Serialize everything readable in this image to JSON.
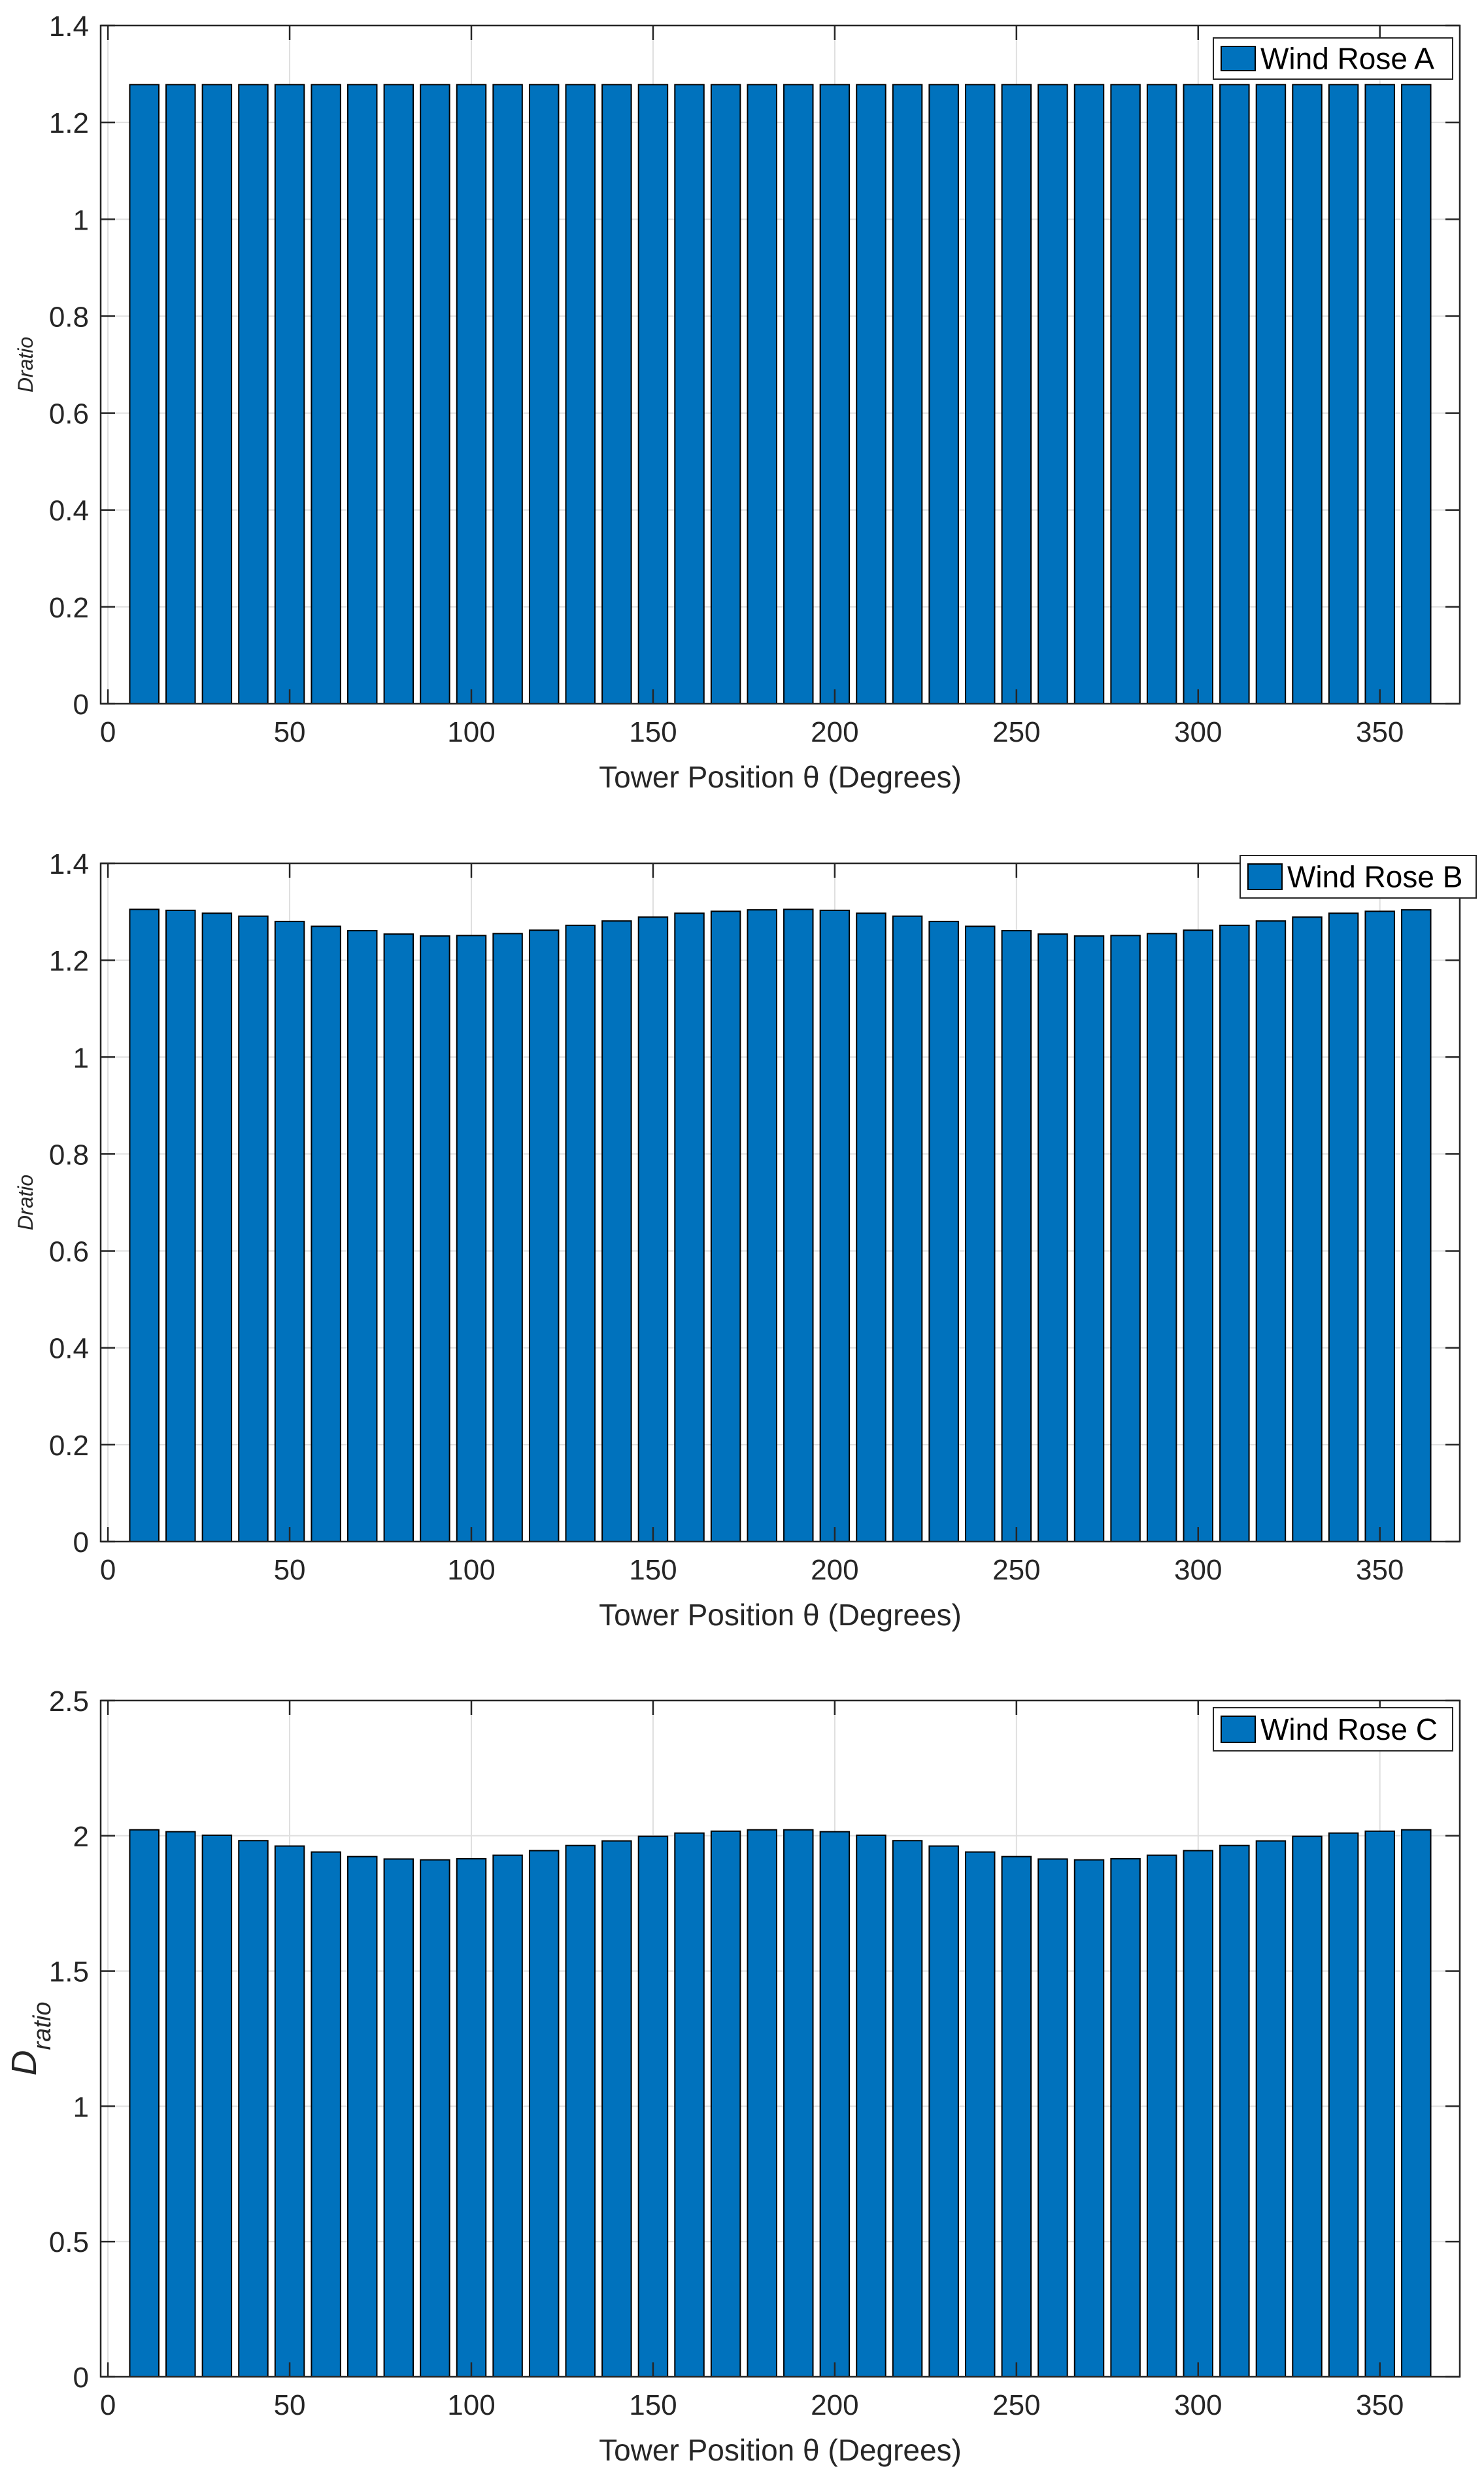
{
  "colors": {
    "bar": "#0072BD",
    "edge": "#000000",
    "grid": "#DFDFDF",
    "axis": "#262626"
  },
  "chart_data": [
    {
      "type": "bar",
      "title": "",
      "legend": "Wind Rose A",
      "legend_position": "top-right",
      "xlabel": "Tower Position θ (Degrees)",
      "ylabel": "Dratio",
      "ylabel_style": "inline",
      "xlim": [
        -2,
        372
      ],
      "ylim": [
        0,
        1.4
      ],
      "xticks": [
        0,
        50,
        100,
        150,
        200,
        250,
        300,
        350
      ],
      "yticks": [
        0,
        0.2,
        0.4,
        0.6,
        0.8,
        1,
        1.2,
        1.4
      ],
      "ytick_labels": [
        "0",
        "0.2",
        "0.4",
        "0.6",
        "0.8",
        "1",
        "1.2",
        "1.4"
      ],
      "grid": true,
      "x": [
        10,
        20,
        30,
        40,
        50,
        60,
        70,
        80,
        90,
        100,
        110,
        120,
        130,
        140,
        150,
        160,
        170,
        180,
        190,
        200,
        210,
        220,
        230,
        240,
        250,
        260,
        270,
        280,
        290,
        300,
        310,
        320,
        330,
        340,
        350,
        360
      ],
      "values": [
        1.278,
        1.278,
        1.278,
        1.278,
        1.278,
        1.278,
        1.278,
        1.278,
        1.278,
        1.278,
        1.278,
        1.278,
        1.278,
        1.278,
        1.278,
        1.278,
        1.278,
        1.278,
        1.278,
        1.278,
        1.278,
        1.278,
        1.278,
        1.278,
        1.278,
        1.278,
        1.278,
        1.278,
        1.278,
        1.278,
        1.278,
        1.278,
        1.278,
        1.278,
        1.278,
        1.278
      ]
    },
    {
      "type": "bar",
      "title": "",
      "legend": "Wind Rose B",
      "legend_position": "top-right",
      "xlabel": "Tower Position θ (Degrees)",
      "ylabel": "Dratio",
      "ylabel_style": "inline",
      "xlim": [
        -2,
        372
      ],
      "ylim": [
        0,
        1.4
      ],
      "xticks": [
        0,
        50,
        100,
        150,
        200,
        250,
        300,
        350
      ],
      "yticks": [
        0,
        0.2,
        0.4,
        0.6,
        0.8,
        1,
        1.2,
        1.4
      ],
      "ytick_labels": [
        "0",
        "0.2",
        "0.4",
        "0.6",
        "0.8",
        "1",
        "1.2",
        "1.4"
      ],
      "grid": true,
      "x": [
        10,
        20,
        30,
        40,
        50,
        60,
        70,
        80,
        90,
        100,
        110,
        120,
        130,
        140,
        150,
        160,
        170,
        180,
        190,
        200,
        210,
        220,
        230,
        240,
        250,
        260,
        270,
        280,
        290,
        300,
        310,
        320,
        330,
        340,
        350,
        360
      ],
      "values": [
        1.305,
        1.303,
        1.297,
        1.291,
        1.28,
        1.27,
        1.261,
        1.254,
        1.25,
        1.251,
        1.255,
        1.262,
        1.272,
        1.281,
        1.289,
        1.297,
        1.301,
        1.304,
        1.305,
        1.303,
        1.297,
        1.291,
        1.28,
        1.27,
        1.261,
        1.254,
        1.25,
        1.251,
        1.255,
        1.262,
        1.272,
        1.281,
        1.289,
        1.297,
        1.301,
        1.304
      ]
    },
    {
      "type": "bar",
      "title": "",
      "legend": "Wind Rose C",
      "legend_position": "top-right",
      "xlabel": "Tower Position θ (Degrees)",
      "ylabel": "D",
      "ylabel_sub": "ratio",
      "ylabel_style": "subscript",
      "xlim": [
        -2,
        372
      ],
      "ylim": [
        0,
        2.5
      ],
      "xticks": [
        0,
        50,
        100,
        150,
        200,
        250,
        300,
        350
      ],
      "yticks": [
        0,
        0.5,
        1,
        1.5,
        2,
        2.5
      ],
      "ytick_labels": [
        "0",
        "0.5",
        "1",
        "1.5",
        "2",
        "2.5"
      ],
      "grid": true,
      "x": [
        10,
        20,
        30,
        40,
        50,
        60,
        70,
        80,
        90,
        100,
        110,
        120,
        130,
        140,
        150,
        160,
        170,
        180,
        190,
        200,
        210,
        220,
        230,
        240,
        250,
        260,
        270,
        280,
        290,
        300,
        310,
        320,
        330,
        340,
        350,
        360
      ],
      "values": [
        2.022,
        2.015,
        2.002,
        1.982,
        1.962,
        1.94,
        1.923,
        1.914,
        1.911,
        1.915,
        1.928,
        1.945,
        1.964,
        1.981,
        1.998,
        2.01,
        2.017,
        2.022,
        2.022,
        2.015,
        2.002,
        1.982,
        1.962,
        1.94,
        1.923,
        1.914,
        1.911,
        1.915,
        1.928,
        1.945,
        1.964,
        1.981,
        1.998,
        2.01,
        2.017,
        2.022
      ]
    }
  ]
}
